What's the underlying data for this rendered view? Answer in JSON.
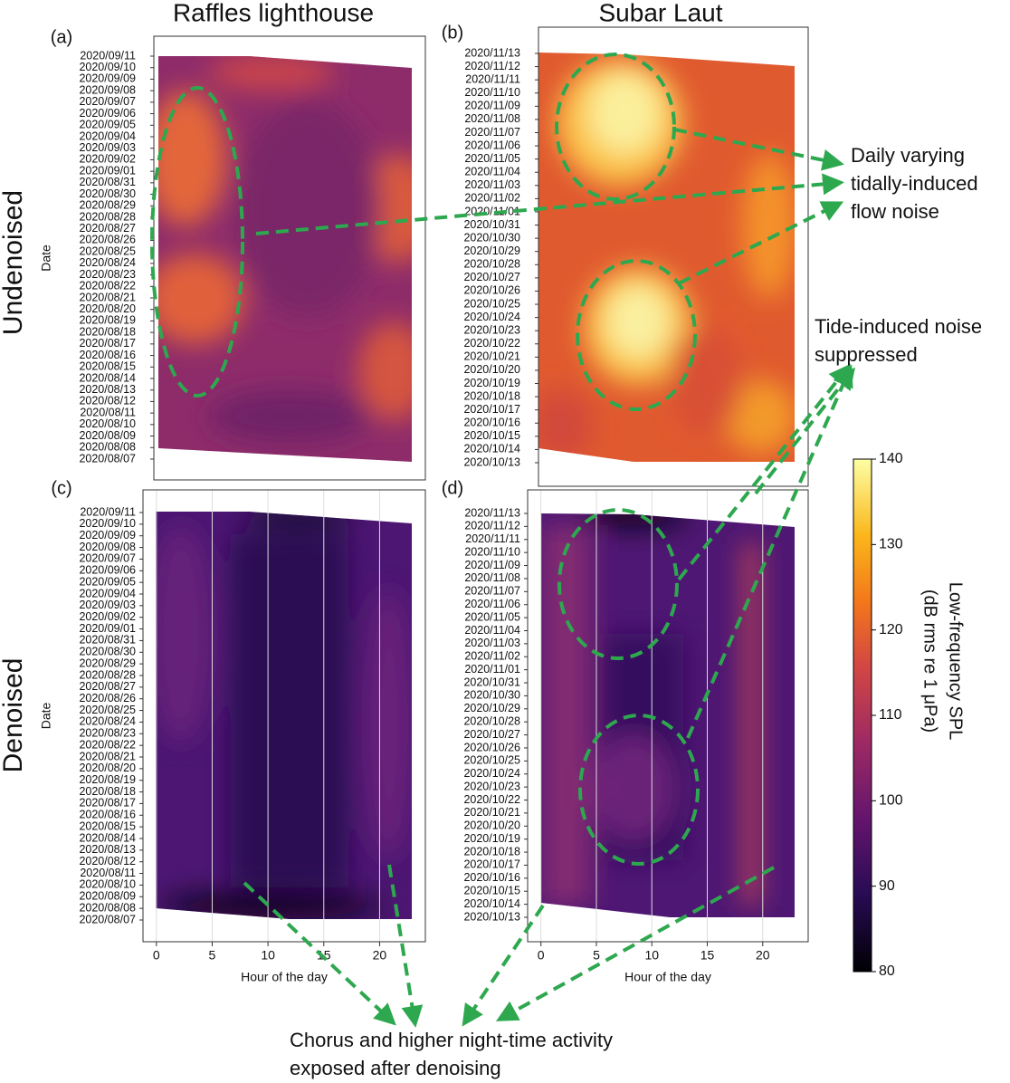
{
  "figure": {
    "column_titles": [
      "Raffles lighthouse",
      "Subar Laut"
    ],
    "row_labels": [
      "Undenoised",
      "Denoised"
    ],
    "annotations": {
      "tidal": [
        "Daily varying",
        "tidally-induced",
        "flow noise"
      ],
      "suppressed": [
        "Tide-induced noise",
        "suppressed"
      ],
      "chorus": [
        "Chorus and higher night-time activity",
        "exposed after denoising"
      ]
    },
    "colorbar": {
      "label": [
        "Low-frequency SPL",
        "(dB  rms re 1 μPa)"
      ],
      "ylim": [
        80,
        140
      ],
      "yticks": [
        80,
        90,
        100,
        110,
        120,
        130,
        140
      ]
    }
  },
  "chart_data": [
    {
      "type": "heatmap",
      "panel_label": "(a)",
      "y_label": "Date",
      "categories": [
        "2020/08/07",
        "2020/08/08",
        "2020/08/09",
        "2020/08/10",
        "2020/08/11",
        "2020/08/12",
        "2020/08/13",
        "2020/08/14",
        "2020/08/15",
        "2020/08/16",
        "2020/08/17",
        "2020/08/18",
        "2020/08/19",
        "2020/08/20",
        "2020/08/21",
        "2020/08/22",
        "2020/08/23",
        "2020/08/24",
        "2020/08/25",
        "2020/08/26",
        "2020/08/27",
        "2020/08/28",
        "2020/08/29",
        "2020/08/30",
        "2020/08/31",
        "2020/09/01",
        "2020/09/02",
        "2020/09/03",
        "2020/09/04",
        "2020/09/05",
        "2020/09/06",
        "2020/09/07",
        "2020/09/08",
        "2020/09/09",
        "2020/09/10",
        "2020/09/11"
      ]
    },
    {
      "type": "heatmap",
      "panel_label": "(b)",
      "categories": [
        "2020/10/13",
        "2020/10/14",
        "2020/10/15",
        "2020/10/16",
        "2020/10/17",
        "2020/10/18",
        "2020/10/19",
        "2020/10/20",
        "2020/10/21",
        "2020/10/22",
        "2020/10/23",
        "2020/10/24",
        "2020/10/25",
        "2020/10/26",
        "2020/10/27",
        "2020/10/28",
        "2020/10/29",
        "2020/10/30",
        "2020/10/31",
        "2020/11/01",
        "2020/11/02",
        "2020/11/03",
        "2020/11/04",
        "2020/11/05",
        "2020/11/06",
        "2020/11/07",
        "2020/11/08",
        "2020/11/09",
        "2020/11/10",
        "2020/11/11",
        "2020/11/12",
        "2020/11/13"
      ]
    },
    {
      "type": "heatmap",
      "panel_label": "(c)",
      "y_label": "Date",
      "x_label": "Hour of the day",
      "xlim": [
        -1.2,
        24.1
      ],
      "xticks": [
        0,
        5,
        10,
        15,
        20
      ],
      "categories": [
        "2020/08/07",
        "2020/08/08",
        "2020/08/09",
        "2020/08/10",
        "2020/08/11",
        "2020/08/12",
        "2020/08/13",
        "2020/08/14",
        "2020/08/15",
        "2020/08/16",
        "2020/08/17",
        "2020/08/18",
        "2020/08/19",
        "2020/08/20",
        "2020/08/21",
        "2020/08/22",
        "2020/08/23",
        "2020/08/24",
        "2020/08/25",
        "2020/08/26",
        "2020/08/27",
        "2020/08/28",
        "2020/08/29",
        "2020/08/30",
        "2020/08/31",
        "2020/09/01",
        "2020/09/02",
        "2020/09/03",
        "2020/09/04",
        "2020/09/05",
        "2020/09/06",
        "2020/09/07",
        "2020/09/08",
        "2020/09/09",
        "2020/09/10",
        "2020/09/11"
      ]
    },
    {
      "type": "heatmap",
      "panel_label": "(d)",
      "x_label": "Hour of the day",
      "xlim": [
        -1.2,
        24.1
      ],
      "xticks": [
        0,
        5,
        10,
        15,
        20
      ],
      "categories": [
        "2020/10/13",
        "2020/10/14",
        "2020/10/15",
        "2020/10/16",
        "2020/10/17",
        "2020/10/18",
        "2020/10/19",
        "2020/10/20",
        "2020/10/21",
        "2020/10/22",
        "2020/10/23",
        "2020/10/24",
        "2020/10/25",
        "2020/10/26",
        "2020/10/27",
        "2020/10/28",
        "2020/10/29",
        "2020/10/30",
        "2020/10/31",
        "2020/11/01",
        "2020/11/02",
        "2020/11/03",
        "2020/11/04",
        "2020/11/05",
        "2020/11/06",
        "2020/11/07",
        "2020/11/08",
        "2020/11/09",
        "2020/11/10",
        "2020/11/11",
        "2020/11/12",
        "2020/11/13"
      ]
    }
  ]
}
